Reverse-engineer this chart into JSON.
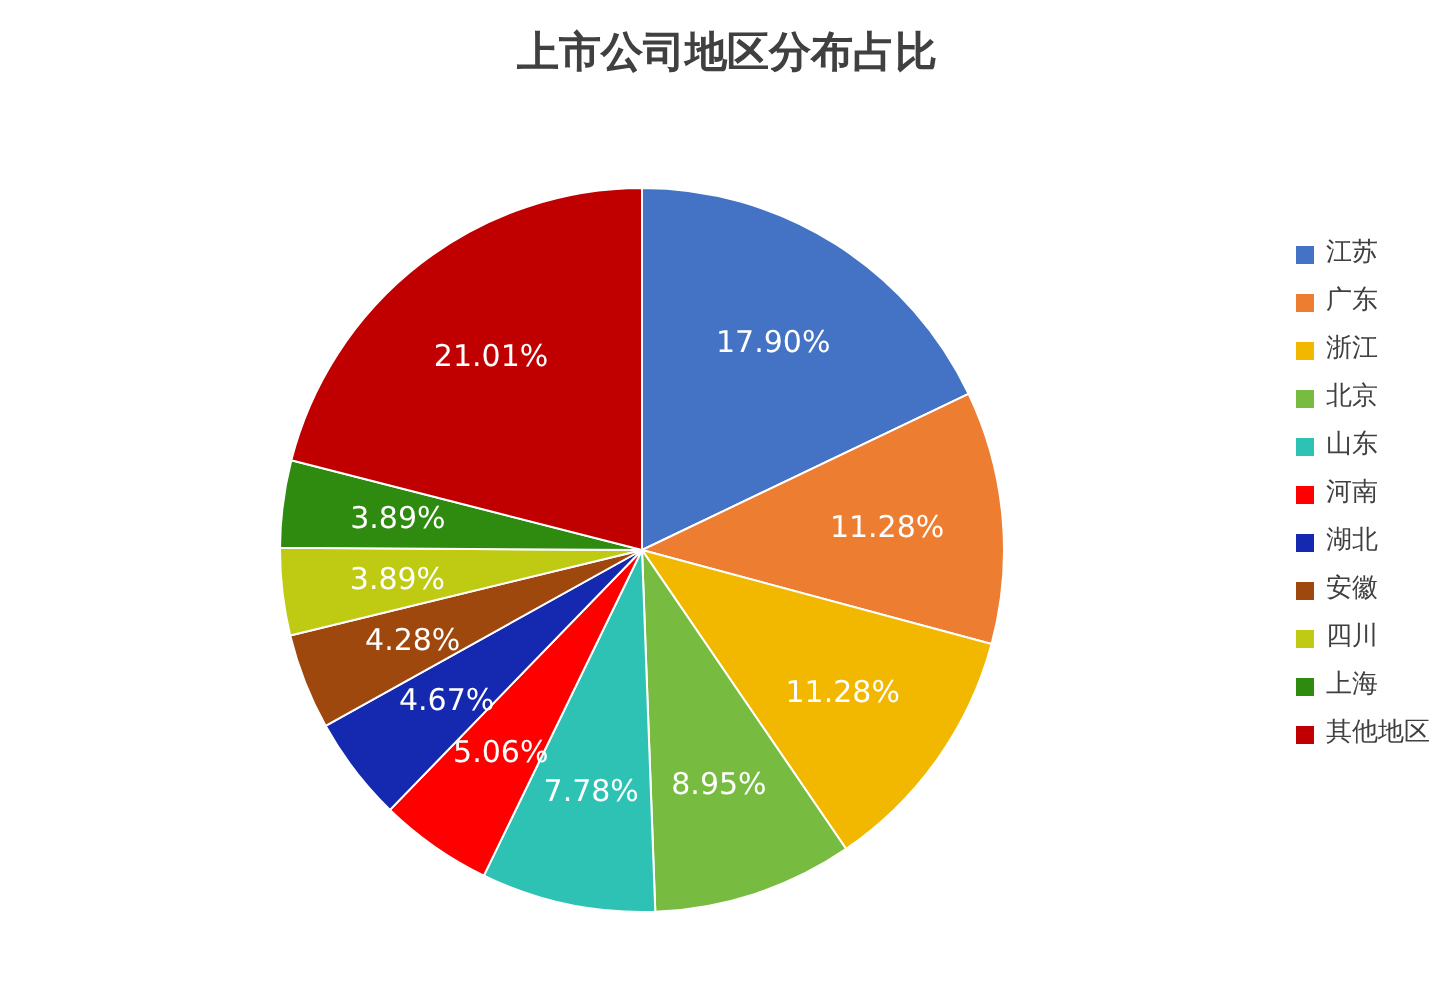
{
  "chart_data": {
    "type": "pie",
    "title": "上市公司地区分布占比",
    "categories": [
      "江苏",
      "广东",
      "浙江",
      "北京",
      "山东",
      "河南",
      "湖北",
      "安徽",
      "四川",
      "上海",
      "其他地区"
    ],
    "values": [
      17.9,
      11.28,
      11.28,
      8.95,
      7.78,
      5.06,
      4.67,
      4.28,
      3.89,
      3.89,
      21.01
    ],
    "colors": [
      "#4472c4",
      "#ed7d31",
      "#f2b800",
      "#77bc40",
      "#2ec2b4",
      "#ff0000",
      "#1428b0",
      "#9e480e",
      "#bfca12",
      "#2e8b0f",
      "#c00000"
    ],
    "value_labels": [
      "17.90%",
      "11.28%",
      "11.28%",
      "8.95%",
      "7.78%",
      "5.06%",
      "4.67%",
      "4.28%",
      "3.89%",
      "3.89%",
      "21.01%"
    ],
    "legend": "right"
  }
}
